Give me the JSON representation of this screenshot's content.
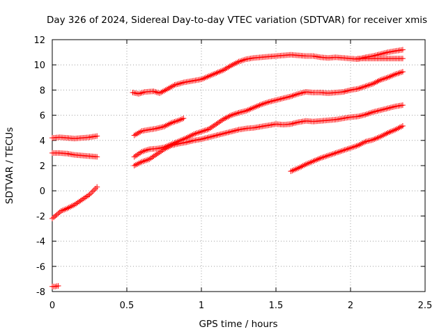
{
  "chart_data": {
    "type": "scatter",
    "title": "Day 326 of 2024, Sidereal Day-to-day VTEC variation (SDTVAR) for receiver xmis",
    "xlabel": "GPS time / hours",
    "ylabel": "SDTVAR / TECUs",
    "xlim": [
      0,
      2.5
    ],
    "ylim": [
      -8,
      12
    ],
    "xticks": [
      0,
      0.5,
      1,
      1.5,
      2,
      2.5
    ],
    "xtick_labels": [
      "0",
      "0.5",
      "1",
      "1.5",
      "2",
      "2.5"
    ],
    "yticks": [
      -8,
      -6,
      -4,
      -2,
      0,
      2,
      4,
      6,
      8,
      10,
      12
    ],
    "ytick_labels": [
      "-8",
      "-6",
      "-4",
      "-2",
      "0",
      "2",
      "4",
      "6",
      "8",
      "10",
      "12"
    ],
    "grid": true,
    "marker": "+",
    "color": "#ff0000",
    "series": [
      {
        "name": "s1",
        "points": [
          [
            0.0,
            4.2
          ],
          [
            0.05,
            4.25
          ],
          [
            0.1,
            4.2
          ],
          [
            0.15,
            4.15
          ],
          [
            0.2,
            4.2
          ],
          [
            0.25,
            4.25
          ],
          [
            0.3,
            4.35
          ]
        ]
      },
      {
        "name": "s2",
        "points": [
          [
            0.0,
            3.0
          ],
          [
            0.05,
            3.0
          ],
          [
            0.1,
            2.95
          ],
          [
            0.15,
            2.85
          ],
          [
            0.2,
            2.8
          ],
          [
            0.25,
            2.75
          ],
          [
            0.3,
            2.7
          ]
        ]
      },
      {
        "name": "s3",
        "points": [
          [
            0.0,
            -2.2
          ],
          [
            0.03,
            -1.9
          ],
          [
            0.06,
            -1.6
          ],
          [
            0.1,
            -1.4
          ],
          [
            0.15,
            -1.1
          ],
          [
            0.2,
            -0.7
          ],
          [
            0.25,
            -0.3
          ],
          [
            0.3,
            0.3
          ]
        ]
      },
      {
        "name": "s4",
        "points": [
          [
            0.0,
            -7.6
          ],
          [
            0.02,
            -7.6
          ],
          [
            0.04,
            -7.55
          ]
        ]
      },
      {
        "name": "s5",
        "points": [
          [
            0.54,
            7.8
          ],
          [
            0.58,
            7.7
          ],
          [
            0.62,
            7.85
          ],
          [
            0.68,
            7.9
          ],
          [
            0.72,
            7.75
          ],
          [
            0.76,
            8.0
          ],
          [
            0.82,
            8.4
          ],
          [
            0.88,
            8.6
          ],
          [
            0.95,
            8.75
          ],
          [
            1.0,
            8.85
          ],
          [
            1.05,
            9.1
          ],
          [
            1.1,
            9.35
          ],
          [
            1.15,
            9.6
          ],
          [
            1.2,
            9.95
          ],
          [
            1.25,
            10.25
          ],
          [
            1.3,
            10.45
          ],
          [
            1.35,
            10.55
          ],
          [
            1.4,
            10.6
          ],
          [
            1.45,
            10.65
          ],
          [
            1.5,
            10.7
          ],
          [
            1.55,
            10.75
          ],
          [
            1.6,
            10.8
          ],
          [
            1.65,
            10.75
          ],
          [
            1.7,
            10.7
          ],
          [
            1.75,
            10.7
          ],
          [
            1.8,
            10.6
          ],
          [
            1.85,
            10.55
          ],
          [
            1.9,
            10.6
          ],
          [
            1.95,
            10.55
          ],
          [
            2.0,
            10.5
          ],
          [
            2.05,
            10.45
          ],
          [
            2.1,
            10.6
          ],
          [
            2.15,
            10.7
          ],
          [
            2.2,
            10.85
          ],
          [
            2.25,
            11.0
          ],
          [
            2.3,
            11.1
          ],
          [
            2.35,
            11.2
          ]
        ]
      },
      {
        "name": "s6",
        "points": [
          [
            2.05,
            10.5
          ],
          [
            2.1,
            10.5
          ],
          [
            2.15,
            10.5
          ],
          [
            2.2,
            10.5
          ],
          [
            2.25,
            10.5
          ],
          [
            2.3,
            10.5
          ],
          [
            2.35,
            10.5
          ]
        ]
      },
      {
        "name": "s7",
        "points": [
          [
            0.55,
            4.4
          ],
          [
            0.6,
            4.75
          ],
          [
            0.65,
            4.85
          ],
          [
            0.7,
            4.95
          ],
          [
            0.75,
            5.1
          ],
          [
            0.8,
            5.4
          ],
          [
            0.85,
            5.6
          ],
          [
            0.88,
            5.75
          ]
        ]
      },
      {
        "name": "s8",
        "points": [
          [
            0.55,
            2.7
          ],
          [
            0.6,
            3.1
          ],
          [
            0.65,
            3.3
          ],
          [
            0.7,
            3.35
          ],
          [
            0.75,
            3.45
          ],
          [
            0.8,
            3.7
          ],
          [
            0.85,
            3.95
          ],
          [
            0.9,
            4.2
          ],
          [
            0.95,
            4.5
          ],
          [
            1.0,
            4.7
          ],
          [
            1.05,
            4.9
          ],
          [
            1.1,
            5.3
          ],
          [
            1.15,
            5.7
          ],
          [
            1.2,
            6.0
          ],
          [
            1.25,
            6.2
          ],
          [
            1.3,
            6.35
          ],
          [
            1.35,
            6.6
          ],
          [
            1.4,
            6.85
          ],
          [
            1.45,
            7.05
          ],
          [
            1.5,
            7.2
          ],
          [
            1.55,
            7.35
          ],
          [
            1.6,
            7.5
          ],
          [
            1.65,
            7.7
          ],
          [
            1.7,
            7.85
          ],
          [
            1.75,
            7.8
          ],
          [
            1.8,
            7.8
          ],
          [
            1.85,
            7.75
          ],
          [
            1.9,
            7.8
          ],
          [
            1.95,
            7.85
          ],
          [
            2.0,
            8.0
          ],
          [
            2.05,
            8.1
          ],
          [
            2.1,
            8.3
          ],
          [
            2.15,
            8.5
          ],
          [
            2.2,
            8.8
          ],
          [
            2.25,
            9.0
          ],
          [
            2.3,
            9.25
          ],
          [
            2.35,
            9.45
          ]
        ]
      },
      {
        "name": "s9",
        "points": [
          [
            0.55,
            2.0
          ],
          [
            0.6,
            2.3
          ],
          [
            0.65,
            2.5
          ],
          [
            0.7,
            2.9
          ],
          [
            0.75,
            3.3
          ],
          [
            0.8,
            3.6
          ],
          [
            0.85,
            3.75
          ],
          [
            0.9,
            3.85
          ],
          [
            0.95,
            4.0
          ],
          [
            1.0,
            4.1
          ],
          [
            1.05,
            4.25
          ],
          [
            1.1,
            4.4
          ],
          [
            1.15,
            4.55
          ],
          [
            1.2,
            4.7
          ],
          [
            1.25,
            4.85
          ],
          [
            1.3,
            4.95
          ],
          [
            1.35,
            5.0
          ],
          [
            1.4,
            5.1
          ],
          [
            1.45,
            5.2
          ],
          [
            1.5,
            5.3
          ],
          [
            1.55,
            5.25
          ],
          [
            1.6,
            5.3
          ],
          [
            1.65,
            5.45
          ],
          [
            1.7,
            5.55
          ],
          [
            1.75,
            5.5
          ],
          [
            1.8,
            5.55
          ],
          [
            1.85,
            5.6
          ],
          [
            1.9,
            5.65
          ],
          [
            1.95,
            5.75
          ],
          [
            2.0,
            5.85
          ],
          [
            2.05,
            5.9
          ],
          [
            2.1,
            6.05
          ],
          [
            2.15,
            6.25
          ],
          [
            2.2,
            6.4
          ],
          [
            2.25,
            6.55
          ],
          [
            2.3,
            6.7
          ],
          [
            2.35,
            6.8
          ]
        ]
      },
      {
        "name": "s10",
        "points": [
          [
            1.6,
            1.55
          ],
          [
            1.65,
            1.8
          ],
          [
            1.7,
            2.1
          ],
          [
            1.75,
            2.35
          ],
          [
            1.8,
            2.6
          ],
          [
            1.85,
            2.8
          ],
          [
            1.9,
            3.0
          ],
          [
            1.95,
            3.2
          ],
          [
            2.0,
            3.4
          ],
          [
            2.05,
            3.6
          ],
          [
            2.1,
            3.9
          ],
          [
            2.15,
            4.05
          ],
          [
            2.2,
            4.3
          ],
          [
            2.25,
            4.6
          ],
          [
            2.3,
            4.85
          ],
          [
            2.35,
            5.15
          ]
        ]
      }
    ]
  }
}
